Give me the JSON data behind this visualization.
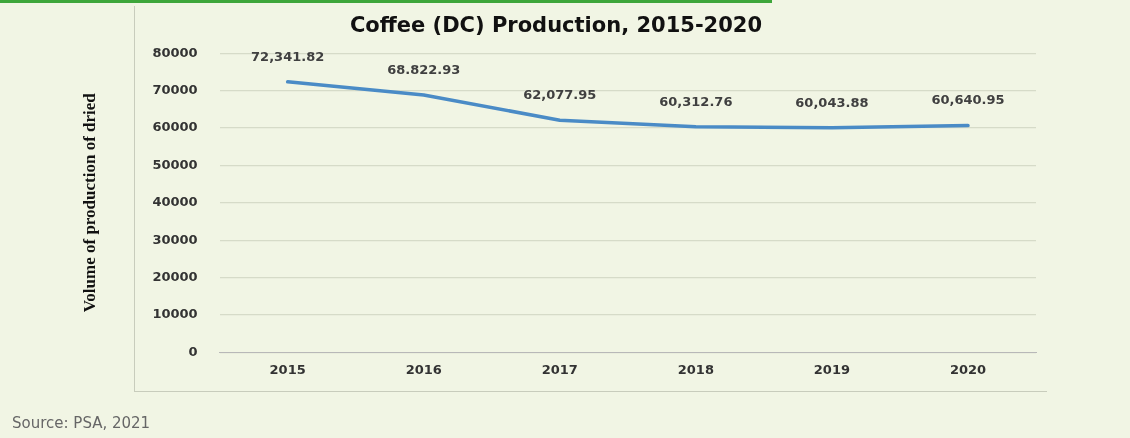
{
  "chart_data": {
    "type": "line",
    "title": "Coffee (DC) Production, 2015-2020",
    "ylabel": "Volume of production of dried",
    "categories": [
      "2015",
      "2016",
      "2017",
      "2018",
      "2019",
      "2020"
    ],
    "series": [
      {
        "color": "#4a8bc6",
        "values": [
          72341.82,
          68822.93,
          62077.95,
          60312.76,
          60043.88,
          60640.95
        ],
        "value_labels": [
          "72,341.82",
          "68.822.93",
          "62,077.95",
          "60,312.76",
          "60,043.88",
          "60,640.95"
        ]
      }
    ],
    "ylim": [
      0,
      80000
    ],
    "yticks": [
      0,
      10000,
      20000,
      30000,
      40000,
      50000,
      60000,
      70000,
      80000
    ],
    "grid": "y",
    "legend": false,
    "marker": "none",
    "line_style": "solid",
    "annotations": [
      "Source: PSA, 2021"
    ]
  }
}
